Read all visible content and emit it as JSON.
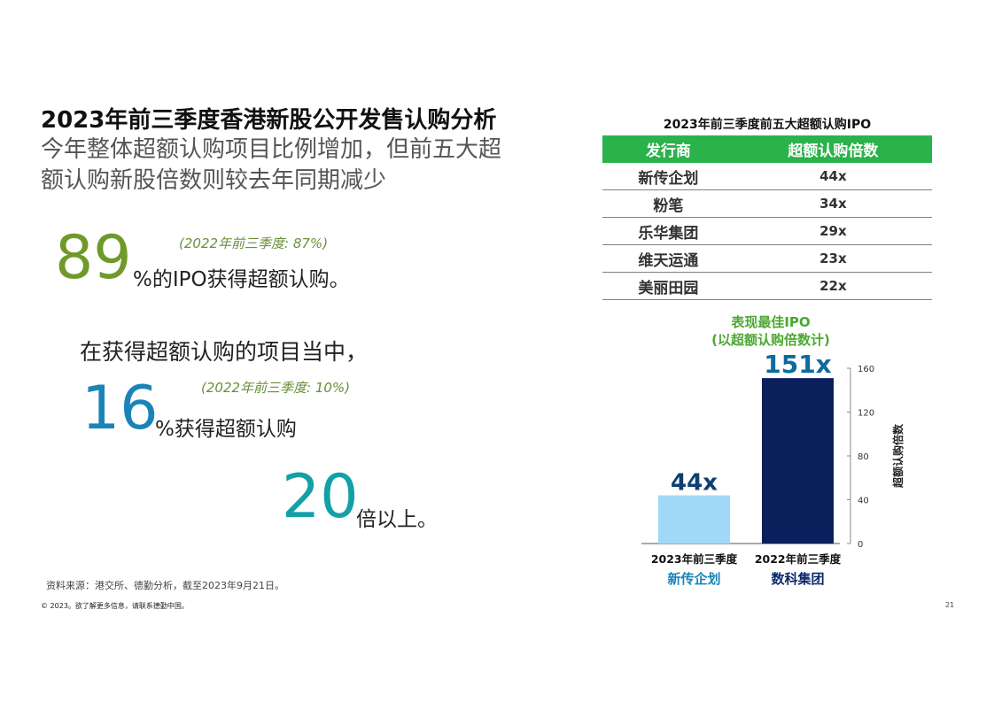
{
  "header": {
    "title": "2023年前三季度香港新股公开发售认购分析",
    "subtitle_line1": "今年整体超额认购项目比例增加，但前五大超",
    "subtitle_line2": "额认购新股倍数则较去年同期减少"
  },
  "stats": {
    "stat1": {
      "number": "89",
      "text": "%的IPO获得超额认购。",
      "previous": "(2022年前三季度: 87%)"
    },
    "stat2": {
      "intro": "在获得超额认购的项目当中，",
      "number": "16",
      "text": "%获得超额认购",
      "previous": "(2022年前三季度: 10%)"
    },
    "stat3": {
      "number": "20",
      "text": "倍以上。"
    }
  },
  "top5_table": {
    "title": "2023年前三季度前五大超额认购IPO",
    "headers": [
      "发行商",
      "超额认购倍数"
    ],
    "rows": [
      {
        "issuer": "新传企划",
        "multiple": "44x"
      },
      {
        "issuer": "粉笔",
        "multiple": "34x"
      },
      {
        "issuer": "乐华集团",
        "multiple": "29x"
      },
      {
        "issuer": "维天运通",
        "multiple": "23x"
      },
      {
        "issuer": "美丽田园",
        "multiple": "22x"
      }
    ],
    "header_color": "#2ab24b"
  },
  "chart_data": {
    "type": "bar",
    "title": "表现最佳IPO",
    "subtitle": "(以超额认购倍数计)",
    "categories": [
      "2023年前三季度",
      "2022年前三季度"
    ],
    "category_sublabels": [
      "新传企划",
      "数科集团"
    ],
    "values": [
      44,
      151
    ],
    "data_labels": [
      "44x",
      "151x"
    ],
    "bar_colors": [
      "#9fd9f7",
      "#0a1f5c"
    ],
    "label_colors": [
      "#0f3f6f",
      "#0f6aa0"
    ],
    "ylabel": "超额认购倍数",
    "ylim": [
      0,
      160
    ],
    "yticks": [
      0,
      40,
      80,
      120,
      160
    ],
    "axis_side": "right",
    "grid": false
  },
  "footer": {
    "source": "资料来源：港交所、德勤分析，截至2023年9月21日。",
    "copyright": "© 2023。欲了解更多信息，请联系德勤中国。",
    "page_number": "21"
  }
}
